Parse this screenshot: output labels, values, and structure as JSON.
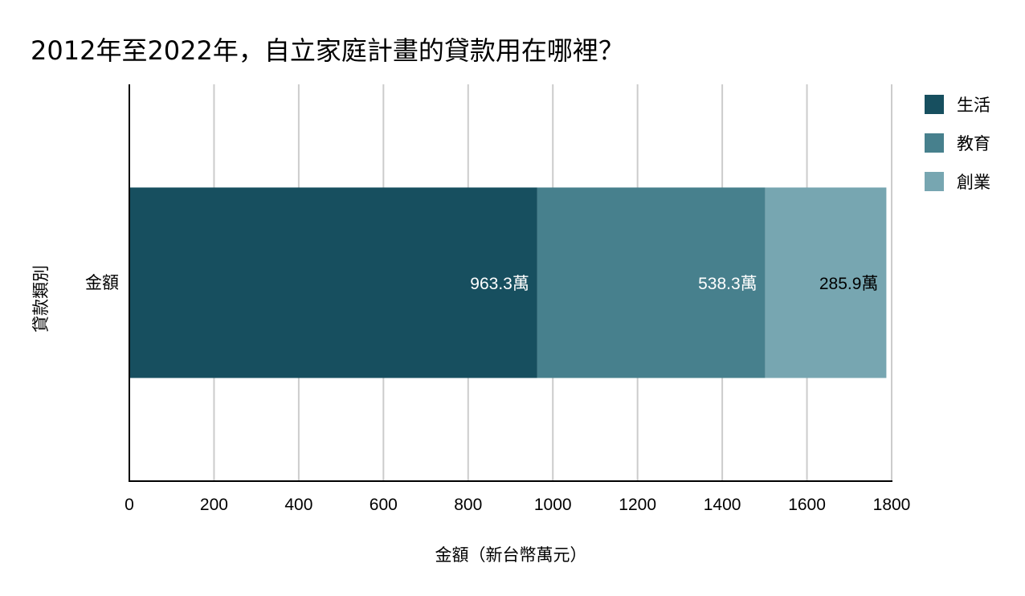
{
  "title": "2012年至2022年，自立家庭計畫的貸款用在哪裡？",
  "chart_data": {
    "type": "bar",
    "orientation": "horizontal",
    "stacked": true,
    "categories": [
      "金額"
    ],
    "series": [
      {
        "name": "生活",
        "values": [
          963.3
        ],
        "label": "963.3萬",
        "color": "#174f5f",
        "label_color": "#ffffff"
      },
      {
        "name": "教育",
        "values": [
          538.3
        ],
        "label": "538.3萬",
        "color": "#47808d",
        "label_color": "#ffffff"
      },
      {
        "name": "創業",
        "values": [
          285.9
        ],
        "label": "285.9萬",
        "color": "#77a6b1",
        "label_color": "#000000"
      }
    ],
    "xlabel": "金額（新台幣萬元）",
    "ylabel": "貸款類別",
    "xlim": [
      0,
      1800
    ],
    "xticks": [
      "0",
      "200",
      "400",
      "600",
      "800",
      "1000",
      "1200",
      "1400",
      "1600",
      "1800"
    ],
    "grid": true,
    "legend_position": "right-top"
  }
}
